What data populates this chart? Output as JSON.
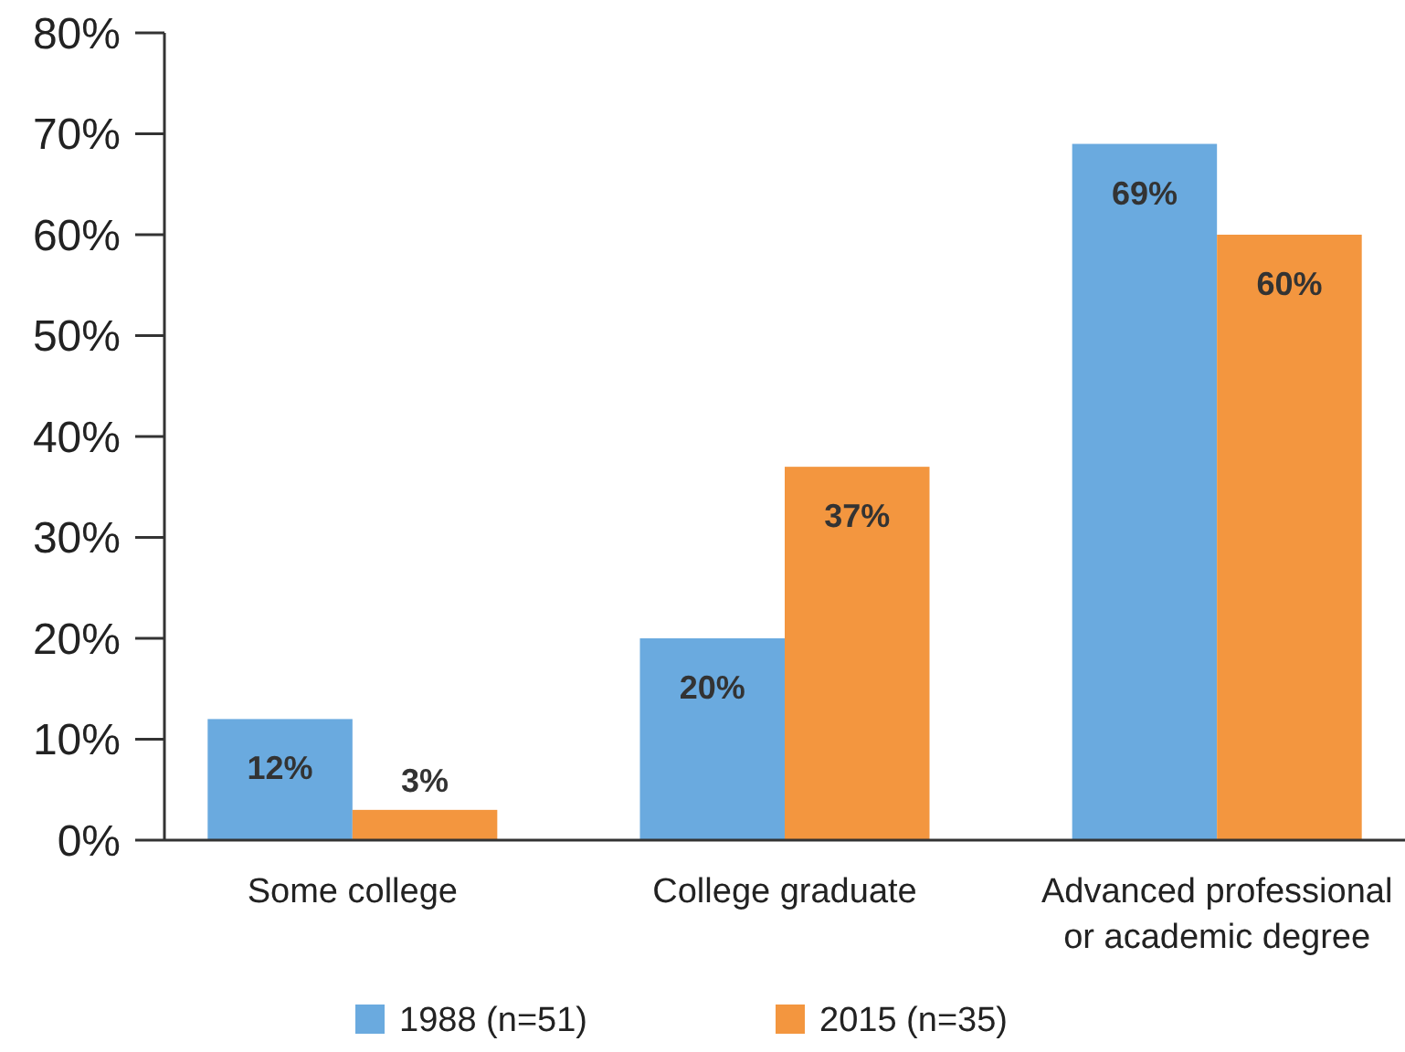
{
  "chart_data": {
    "type": "bar",
    "categories": [
      "Some college",
      "College graduate",
      "Advanced professional\nor academic degree"
    ],
    "series": [
      {
        "name": "1988 (n=51)",
        "color": "#6aaadf",
        "values": [
          12,
          20,
          69
        ]
      },
      {
        "name": "2015 (n=35)",
        "color": "#f3963f",
        "values": [
          3,
          37,
          60
        ]
      }
    ],
    "ylim": [
      0,
      80
    ],
    "yticks": [
      {
        "value": 0,
        "label": "0%"
      },
      {
        "value": 10,
        "label": "10%"
      },
      {
        "value": 20,
        "label": "20%"
      },
      {
        "value": 30,
        "label": "30%"
      },
      {
        "value": 40,
        "label": "40%"
      },
      {
        "value": 50,
        "label": "50%"
      },
      {
        "value": 60,
        "label": "60%"
      },
      {
        "value": 70,
        "label": "70%"
      },
      {
        "value": 80,
        "label": "80%"
      }
    ],
    "value_labels": [
      [
        "12%",
        "20%",
        "69%"
      ],
      [
        "3%",
        "37%",
        "60%"
      ]
    ],
    "grid": false,
    "legend": "bottom"
  }
}
